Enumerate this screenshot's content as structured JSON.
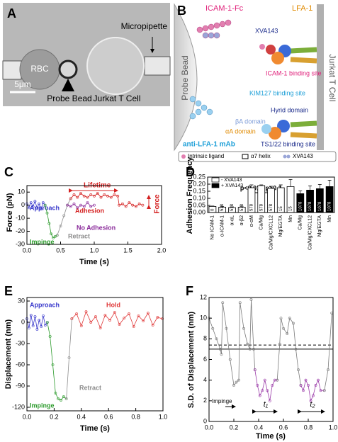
{
  "panel_a": {
    "label": "A",
    "rbc": "RBC",
    "micropipette": "Micropipette",
    "probe_bead": "Probe Bead",
    "jurkat": "Jurkat T Cell",
    "scale_bar": "5μm"
  },
  "panel_b": {
    "label": "B",
    "icam_fc": "ICAM-1-Fc",
    "lfa1": "LFA-1",
    "xva143": "XVA143",
    "icam_site": "ICAM-1 binding site",
    "kim127_site": "KIM127 binding site",
    "hybrid": "Hyrid domain",
    "beta_a": "βA domain",
    "alpha_a": "αA domain",
    "ts122_site": "TS1/22 binding site",
    "mab": "anti-LFA-1 mAb",
    "probe_bead": "Probe Bead",
    "t_cell": "Jurkat T Cell",
    "legend": [
      "Intrinsic ligand",
      "α7 helix",
      "XVA143"
    ]
  },
  "chart_data": [
    {
      "type": "line",
      "panel": "C",
      "x_label": "Time (s)",
      "y_label": "Force (pN)",
      "xlim": [
        0,
        2
      ],
      "ylim": [
        -30,
        15
      ],
      "xticks": [
        {
          "value": 0,
          "label": "0.0"
        },
        0.5,
        {
          "value": 1,
          "label": "1.0"
        },
        1.5,
        {
          "value": 2,
          "label": "2.0"
        }
      ],
      "yticks": [
        -30,
        -20,
        -10,
        0,
        10
      ],
      "annotations": [
        "Lifetime",
        "Force"
      ],
      "series": [
        {
          "name": "Approach",
          "color": "#3a3acc",
          "x": [
            0,
            0.03,
            0.06,
            0.09,
            0.12,
            0.15,
            0.18,
            0.21,
            0.24,
            0.27
          ],
          "values": [
            1,
            -2,
            2,
            -1,
            3,
            -2,
            1,
            -3,
            2,
            0
          ]
        },
        {
          "name": "Impinge",
          "color": "#2a9a2a",
          "x": [
            0.27,
            0.3,
            0.33,
            0.36,
            0.39,
            0.42,
            0.45
          ],
          "values": [
            0,
            -6,
            -14,
            -22,
            -25,
            -24,
            -23
          ]
        },
        {
          "name": "Retract",
          "color": "#8c8c8c",
          "x": [
            0.45,
            0.5,
            0.55,
            0.6,
            0.65
          ],
          "values": [
            -23,
            -16,
            -8,
            0,
            5
          ]
        },
        {
          "name": "No Adhesion",
          "color": "#8a2a9a",
          "x": [
            0.6,
            0.65,
            0.7,
            0.75,
            0.8,
            0.85,
            0.9,
            0.95,
            1.0
          ],
          "values": [
            0,
            -1,
            1,
            -2,
            0,
            -1,
            2,
            -1,
            0
          ]
        },
        {
          "name": "Adhesion",
          "color": "#d42020",
          "x": [
            0.65,
            0.7,
            0.75,
            0.8,
            0.85,
            0.9,
            0.95,
            1.0,
            1.05,
            1.1,
            1.15,
            1.2,
            1.25,
            1.3,
            1.35,
            1.37,
            1.42,
            1.47,
            1.52,
            1.57,
            1.62,
            1.67,
            1.72
          ],
          "values": [
            5,
            8,
            6,
            9,
            7,
            6,
            8,
            7,
            9,
            6,
            8,
            7,
            6,
            8,
            7,
            0,
            1,
            -1,
            2,
            0,
            -1,
            1,
            0
          ]
        }
      ]
    },
    {
      "type": "bar",
      "panel": "D",
      "y_label": "Adhesion Frequency",
      "ylim": [
        0,
        0.25
      ],
      "yticks": [
        {
          "value": 0,
          "label": "0.00"
        },
        {
          "value": 0.05,
          "label": "0.05"
        },
        {
          "value": 0.1,
          "label": "0.10"
        },
        {
          "value": 0.15,
          "label": "0.15"
        },
        {
          "value": 0.2,
          "label": "0.20"
        },
        {
          "value": 0.25,
          "label": "0.25"
        }
      ],
      "legend": "upper left",
      "annotations": [
        "p<0.01",
        "p>0.1"
      ],
      "categories": [
        "No ICAM-1",
        "α-ICAM-1",
        "α-αL",
        "α-β2",
        "α-αM",
        "Ca/Mg",
        "Ca/Mg/CXCL12",
        "Mg/EGTA",
        "Mn",
        "Ca/Mg",
        "Ca/Mg/CXCL12",
        "Mg/EGTA",
        "Mn"
      ],
      "n_labels": [
        "0",
        "578",
        "578",
        "578",
        "578",
        "578",
        "578",
        "15",
        "15",
        "1078",
        "1078",
        "1078",
        "1078"
      ],
      "series": [
        {
          "name": "- XVA143",
          "color": "#ffffff",
          "values": [
            0.043,
            0.038,
            0.035,
            0.038,
            0.175,
            0.19,
            0.17,
            0.175,
            0.183,
            null,
            null,
            null,
            null
          ],
          "errors": [
            0.003,
            0.005,
            0.005,
            0.006,
            0.02,
            0.005,
            0.015,
            0.02,
            0.05,
            null,
            null,
            null,
            null
          ]
        },
        {
          "name": "+ XVA143",
          "color": "#000000",
          "values": [
            null,
            null,
            null,
            null,
            null,
            null,
            null,
            null,
            null,
            0.133,
            0.158,
            0.168,
            0.183
          ],
          "errors": [
            null,
            null,
            null,
            null,
            null,
            null,
            null,
            null,
            null,
            0.02,
            0.03,
            0.03,
            0.045
          ]
        }
      ]
    },
    {
      "type": "line",
      "panel": "E",
      "x_label": "Time (s)",
      "y_label": "Displacement (nm)",
      "xlim": [
        0,
        1
      ],
      "ylim": [
        -125,
        35
      ],
      "xticks": [
        {
          "value": 0,
          "label": "0.0"
        },
        0.2,
        0.4,
        0.6,
        0.8,
        {
          "value": 1,
          "label": "1.0"
        }
      ],
      "yticks": [
        -120,
        -90,
        -60,
        -30,
        0,
        30
      ],
      "series": [
        {
          "name": "Approach",
          "color": "#3a3acc",
          "x": [
            0,
            0.015,
            0.03,
            0.045,
            0.06,
            0.075,
            0.09,
            0.105,
            0.12,
            0.135,
            0.15
          ],
          "values": [
            5,
            -8,
            10,
            -5,
            8,
            -10,
            3,
            -6,
            9,
            -4,
            0
          ]
        },
        {
          "name": "Impinge",
          "color": "#2a9a2a",
          "x": [
            0.15,
            0.17,
            0.19,
            0.21,
            0.23,
            0.25,
            0.27,
            0.29
          ],
          "values": [
            0,
            -20,
            -60,
            -100,
            -108,
            -110,
            -105,
            -108
          ]
        },
        {
          "name": "Retract",
          "color": "#8c8c8c",
          "x": [
            0.29,
            0.31,
            0.33
          ],
          "values": [
            -108,
            -50,
            5
          ]
        },
        {
          "name": "Hold",
          "color": "#e03a3a",
          "x": [
            0.33,
            0.365,
            0.4,
            0.435,
            0.47,
            0.505,
            0.54,
            0.575,
            0.61,
            0.645,
            0.68,
            0.715,
            0.75,
            0.785,
            0.82,
            0.855,
            0.89,
            0.925,
            0.96,
            0.995
          ],
          "values": [
            5,
            12,
            -5,
            15,
            0,
            8,
            -8,
            10,
            3,
            14,
            -3,
            6,
            12,
            -6,
            9,
            2,
            13,
            -4,
            7,
            5
          ]
        }
      ]
    },
    {
      "type": "line",
      "panel": "F",
      "x_label": "Time (s)",
      "y_label": "S.D. of Displacement (nm)",
      "xlim": [
        0,
        1
      ],
      "ylim": [
        0,
        12
      ],
      "xticks": [
        {
          "value": 0,
          "label": "0.0"
        },
        0.2,
        0.4,
        0.6,
        0.8,
        {
          "value": 1,
          "label": "1.0"
        }
      ],
      "yticks": [
        0,
        2,
        4,
        6,
        8,
        10,
        12
      ],
      "annotations": [
        "Impinge",
        "t₁",
        "t₂"
      ],
      "hlines": [
        {
          "value": 7.4,
          "style": "dashed"
        },
        {
          "value": 7.0,
          "style": "solid"
        }
      ],
      "series": [
        {
          "color": "#7a7a7a",
          "x": [
            0,
            0.03,
            0.06,
            0.09,
            0.1,
            0.11,
            0.14,
            0.17,
            0.2,
            0.22,
            0.24,
            0.25,
            0.28,
            0.31,
            0.33,
            0.34,
            0.36,
            0.37
          ],
          "values": [
            10,
            9,
            8,
            7,
            6.5,
            11.5,
            9,
            6,
            3.5,
            3.8,
            4,
            11.5,
            9,
            7.5,
            7,
            11.8,
            7,
            5
          ]
        },
        {
          "color": "#9a3aa8",
          "x": [
            0.37,
            0.39,
            0.41,
            0.43,
            0.45,
            0.47,
            0.49,
            0.51,
            0.53,
            0.55
          ],
          "values": [
            5,
            3.5,
            2.5,
            3,
            4,
            3,
            2,
            3.5,
            4,
            4
          ]
        },
        {
          "color": "#7a7a7a",
          "x": [
            0.55,
            0.57,
            0.58,
            0.6,
            0.63,
            0.65,
            0.68,
            0.7,
            0.72,
            0.74
          ],
          "values": [
            4,
            7.5,
            10,
            9,
            8.5,
            10,
            9.5,
            7,
            5,
            3.5
          ]
        },
        {
          "color": "#9a3aa8",
          "x": [
            0.74,
            0.76,
            0.78,
            0.8,
            0.82,
            0.84,
            0.86,
            0.88,
            0.9,
            0.93
          ],
          "values": [
            3.5,
            3,
            4,
            3.5,
            2,
            2.5,
            3.5,
            4,
            3,
            3
          ]
        },
        {
          "color": "#7a7a7a",
          "x": [
            0.93,
            0.96,
            0.99
          ],
          "values": [
            3,
            5,
            10.5
          ]
        }
      ]
    }
  ]
}
